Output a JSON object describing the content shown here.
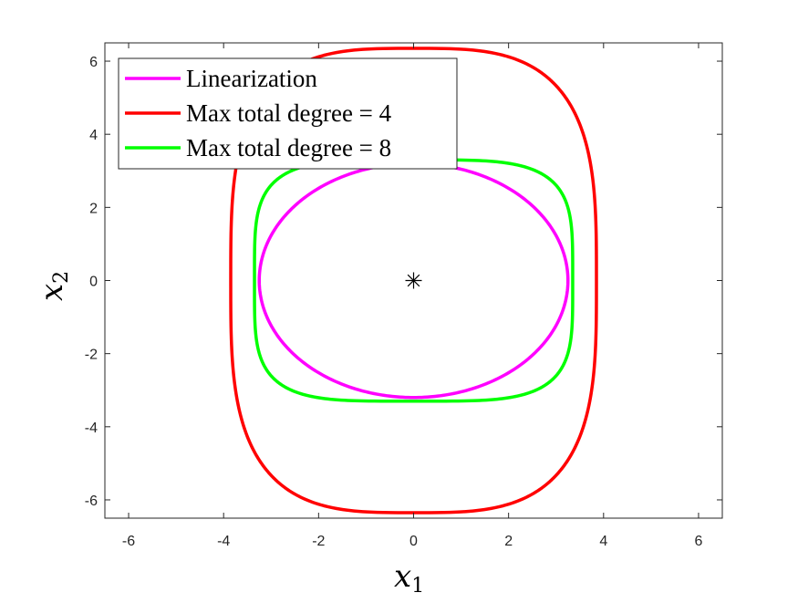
{
  "chart_data": {
    "type": "line",
    "title": "",
    "xlabel": {
      "base": "x",
      "sub": "1"
    },
    "ylabel": {
      "base": "x",
      "sub": "2"
    },
    "xlim": [
      -6.5,
      6.5
    ],
    "ylim": [
      -6.5,
      6.5
    ],
    "xticks": [
      -6,
      -4,
      -2,
      0,
      2,
      4,
      6
    ],
    "yticks": [
      -6,
      -4,
      -2,
      0,
      2,
      4,
      6
    ],
    "xtick_labels": [
      "-6",
      "-4",
      "-2",
      "0",
      "2",
      "4",
      "6"
    ],
    "ytick_labels": [
      "-6",
      "-4",
      "-2",
      "0",
      "2",
      "4",
      "6"
    ],
    "grid": false,
    "legend_position": "top-left",
    "series": [
      {
        "name": "Linearization",
        "color": "#ff00ff",
        "shape": "ellipse",
        "x_radius": 3.25,
        "y_radius": 3.2,
        "exponent": 2
      },
      {
        "name": "Max total degree = 4",
        "color": "#ff0000",
        "shape": "superellipse",
        "x_radius": 3.85,
        "y_radius": 6.35,
        "exponent": 3.3
      },
      {
        "name": "Max total degree = 8",
        "color": "#00ff00",
        "shape": "superellipse",
        "x_radius": 3.35,
        "y_radius": 3.3,
        "exponent": 4.2
      }
    ],
    "marker": {
      "symbol": "asterisk",
      "x": 0,
      "y": 0,
      "color": "#000000"
    }
  }
}
